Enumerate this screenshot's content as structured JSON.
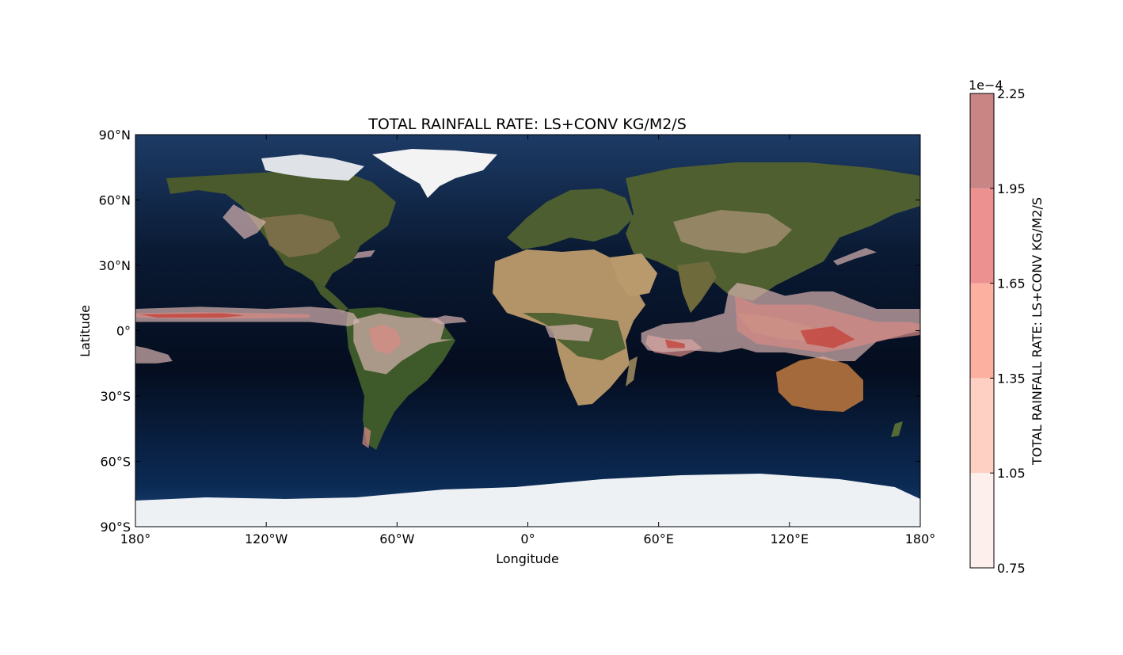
{
  "chart_data": {
    "type": "heatmap",
    "title": "TOTAL RAINFALL RATE: LS+CONV KG/M2/S",
    "xlabel": "Longitude",
    "ylabel": "Latitude",
    "xlim": [
      -180,
      180
    ],
    "ylim": [
      -90,
      90
    ],
    "x_ticks": [
      {
        "value": -180,
        "label": "180°"
      },
      {
        "value": -120,
        "label": "120°W"
      },
      {
        "value": -60,
        "label": "60°W"
      },
      {
        "value": 0,
        "label": "0°"
      },
      {
        "value": 60,
        "label": "60°E"
      },
      {
        "value": 120,
        "label": "120°E"
      },
      {
        "value": 180,
        "label": "180°"
      }
    ],
    "y_ticks": [
      {
        "value": 90,
        "label": "90°N"
      },
      {
        "value": 60,
        "label": "60°N"
      },
      {
        "value": 30,
        "label": "30°N"
      },
      {
        "value": 0,
        "label": "0°"
      },
      {
        "value": -30,
        "label": "30°S"
      },
      {
        "value": -60,
        "label": "60°S"
      },
      {
        "value": -90,
        "label": "90°S"
      }
    ],
    "colorbar": {
      "label": "TOTAL RAINFALL RATE: LS+CONV KG/M2/S",
      "offset_label": "1e−4",
      "levels": [
        "0.75",
        "1.05",
        "1.35",
        "1.65",
        "1.95",
        "2.25"
      ],
      "colors": [
        "#fdf0ec",
        "#fdd0c3",
        "#fcb0a0",
        "#ec9090",
        "#c98484"
      ]
    },
    "rain_regions": [
      {
        "level": 1,
        "points": [
          [
            -180,
            10
          ],
          [
            -150,
            11
          ],
          [
            -120,
            10
          ],
          [
            -100,
            11
          ],
          [
            -88,
            10
          ],
          [
            -80,
            8
          ],
          [
            -77,
            4
          ],
          [
            -82,
            2
          ],
          [
            -100,
            4
          ],
          [
            -130,
            4
          ],
          [
            -160,
            4
          ],
          [
            -180,
            4
          ]
        ]
      },
      {
        "level": 2,
        "points": [
          [
            -180,
            8
          ],
          [
            -150,
            8.5
          ],
          [
            -120,
            8
          ],
          [
            -100,
            7.5
          ],
          [
            -100,
            6
          ],
          [
            -130,
            5.5
          ],
          [
            -160,
            5.5
          ],
          [
            -180,
            6
          ]
        ]
      },
      {
        "level": 3,
        "points": [
          [
            -178,
            7.5
          ],
          [
            -140,
            8
          ],
          [
            -130,
            7
          ],
          [
            -140,
            6
          ],
          [
            -170,
            6
          ]
        ]
      },
      {
        "level": 1,
        "points": [
          [
            -180,
            -7
          ],
          [
            -175,
            -8
          ],
          [
            -165,
            -11
          ],
          [
            -163,
            -14
          ],
          [
            -170,
            -15
          ],
          [
            -180,
            -15
          ]
        ]
      },
      {
        "level": 1,
        "points": [
          [
            -80,
            5
          ],
          [
            -68,
            8
          ],
          [
            -56,
            6
          ],
          [
            -42,
            6
          ],
          [
            -38,
            3
          ],
          [
            -40,
            -4
          ],
          [
            -34,
            -4
          ],
          [
            -45,
            -6
          ],
          [
            -58,
            -14
          ],
          [
            -65,
            -20
          ],
          [
            -75,
            -18
          ],
          [
            -80,
            -5
          ]
        ]
      },
      {
        "level": 2,
        "points": [
          [
            -73,
            1
          ],
          [
            -66,
            3
          ],
          [
            -60,
            0
          ],
          [
            -58,
            -6
          ],
          [
            -64,
            -11
          ],
          [
            -70,
            -9
          ],
          [
            -72,
            -4
          ]
        ]
      },
      {
        "level": 2,
        "points": [
          [
            -75,
            -44
          ],
          [
            -72,
            -46
          ],
          [
            -73,
            -54
          ],
          [
            -76,
            -52
          ]
        ]
      },
      {
        "level": 1,
        "points": [
          [
            -38,
            7
          ],
          [
            -30,
            6
          ],
          [
            -28,
            4
          ],
          [
            -40,
            3
          ],
          [
            -45,
            5
          ]
        ]
      },
      {
        "level": 1,
        "points": [
          [
            -130,
            42
          ],
          [
            -124,
            45
          ],
          [
            -120,
            50
          ],
          [
            -130,
            55
          ],
          [
            -135,
            58
          ],
          [
            -140,
            52
          ]
        ]
      },
      {
        "level": 1,
        "points": [
          [
            -78,
            36
          ],
          [
            -70,
            37
          ],
          [
            -72,
            34
          ],
          [
            -80,
            33
          ]
        ]
      },
      {
        "level": 1,
        "points": [
          [
            8,
            2
          ],
          [
            22,
            3
          ],
          [
            30,
            1
          ],
          [
            28,
            -5
          ],
          [
            15,
            -4
          ],
          [
            10,
            -3
          ]
        ]
      },
      {
        "level": 2,
        "points": [
          [
            55,
            -2
          ],
          [
            65,
            -4
          ],
          [
            75,
            -4
          ],
          [
            80,
            -8
          ],
          [
            70,
            -12
          ],
          [
            58,
            -10
          ],
          [
            54,
            -6
          ]
        ]
      },
      {
        "level": 1,
        "points": [
          [
            52,
            -1
          ],
          [
            62,
            3
          ],
          [
            76,
            4
          ],
          [
            90,
            8
          ],
          [
            92,
            18
          ],
          [
            96,
            22
          ],
          [
            106,
            20
          ],
          [
            118,
            16
          ],
          [
            130,
            18
          ],
          [
            140,
            18
          ],
          [
            160,
            10
          ],
          [
            180,
            10
          ],
          [
            180,
            0
          ],
          [
            160,
            -5
          ],
          [
            150,
            -14
          ],
          [
            140,
            -14
          ],
          [
            130,
            -12
          ],
          [
            118,
            -10
          ],
          [
            105,
            -10
          ],
          [
            98,
            -8
          ],
          [
            88,
            -10
          ],
          [
            75,
            -9
          ],
          [
            62,
            -10
          ],
          [
            55,
            -9
          ],
          [
            52,
            -5
          ]
        ]
      },
      {
        "level": 2,
        "points": [
          [
            95,
            16
          ],
          [
            105,
            12
          ],
          [
            118,
            12
          ],
          [
            130,
            12
          ],
          [
            145,
            8
          ],
          [
            160,
            4
          ],
          [
            175,
            4
          ],
          [
            180,
            3
          ],
          [
            180,
            -2
          ],
          [
            165,
            -4
          ],
          [
            148,
            -8
          ],
          [
            135,
            -10
          ],
          [
            120,
            -8
          ],
          [
            105,
            -6
          ],
          [
            96,
            0
          ]
        ]
      },
      {
        "level": 3,
        "points": [
          [
            125,
            0
          ],
          [
            140,
            2
          ],
          [
            150,
            -4
          ],
          [
            140,
            -8
          ],
          [
            128,
            -6
          ]
        ]
      },
      {
        "level": 3,
        "points": [
          [
            63,
            -4
          ],
          [
            72,
            -6
          ],
          [
            72,
            -8
          ],
          [
            64,
            -8
          ]
        ]
      },
      {
        "level": 1,
        "points": [
          [
            140,
            32
          ],
          [
            150,
            36
          ],
          [
            155,
            38
          ],
          [
            160,
            36
          ],
          [
            150,
            33
          ],
          [
            142,
            30
          ]
        ]
      }
    ]
  }
}
